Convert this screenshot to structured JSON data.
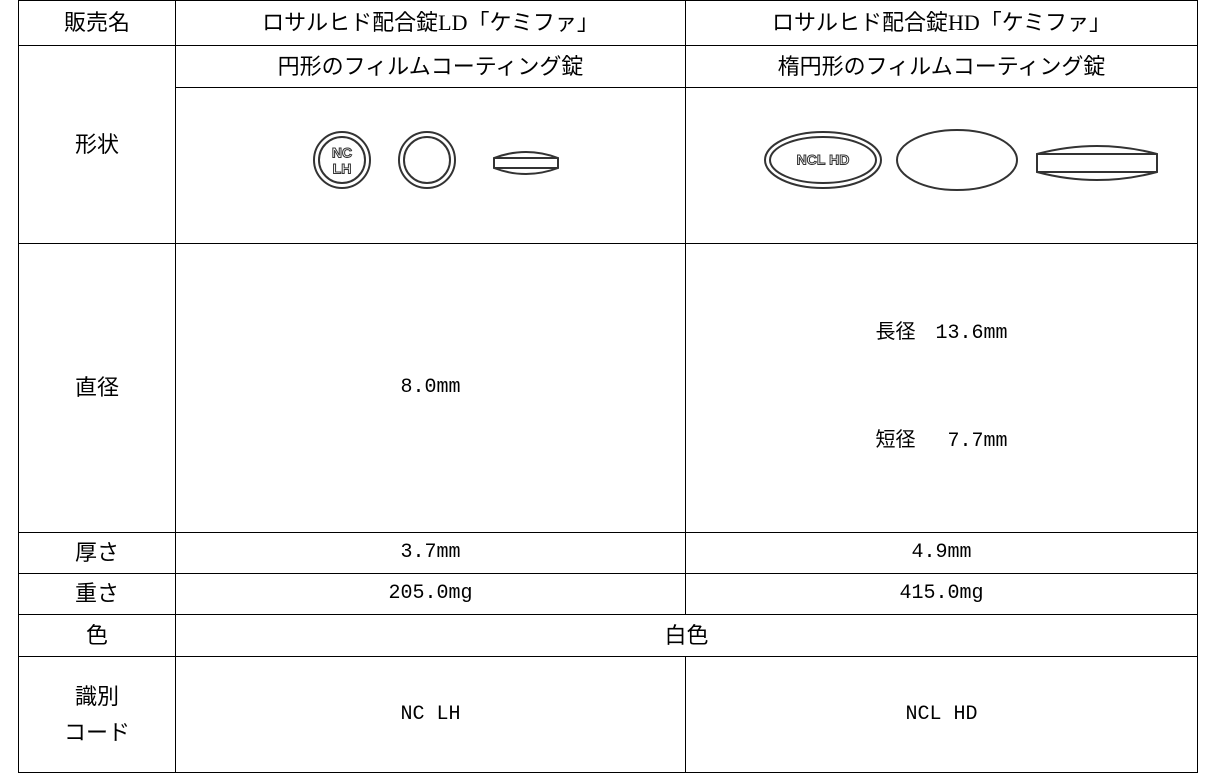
{
  "table": {
    "header": [
      "販売名",
      "ロサルヒド配合錠LD「ケミファ」",
      "ロサルヒド配合錠HD「ケミファ」"
    ],
    "shape": {
      "label": "形状",
      "ld": "円形のフィルムコーティング錠",
      "hd": "楕円形のフィルムコーティング錠",
      "ld_imprint": [
        "NC",
        "LH"
      ],
      "hd_imprint": "NCL HD"
    },
    "diameter": {
      "label": "直径",
      "ld": "8.0mm",
      "hd": [
        "長径　13.6mm",
        "短径　 7.7mm"
      ]
    },
    "thickness": {
      "label": "厚さ",
      "ld": "3.7mm",
      "hd": "4.9mm"
    },
    "weight": {
      "label": "重さ",
      "ld": "205.0mg",
      "hd": "415.0mg"
    },
    "color": {
      "label": "色",
      "value": "白色"
    },
    "code": {
      "label": [
        "識別",
        "コード"
      ],
      "ld": "NC LH",
      "hd": "NCL HD"
    }
  }
}
